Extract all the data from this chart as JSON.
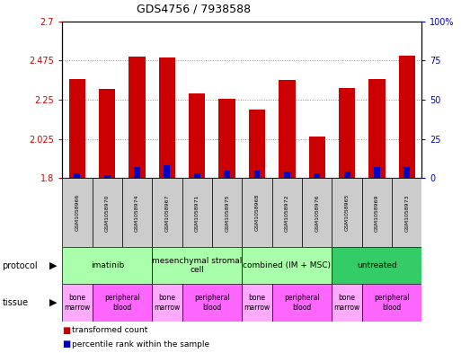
{
  "title": "GDS4756 / 7938588",
  "samples": [
    "GSM1058966",
    "GSM1058970",
    "GSM1058974",
    "GSM1058967",
    "GSM1058971",
    "GSM1058975",
    "GSM1058968",
    "GSM1058972",
    "GSM1058976",
    "GSM1058965",
    "GSM1058969",
    "GSM1058973"
  ],
  "transformed_counts": [
    2.37,
    2.31,
    2.495,
    2.49,
    2.285,
    2.255,
    2.195,
    2.365,
    2.04,
    2.315,
    2.37,
    2.5
  ],
  "percentile_ranks": [
    3,
    2,
    7,
    8,
    3,
    5,
    5,
    4,
    3,
    4,
    7,
    7
  ],
  "base_value": 1.8,
  "ylim": [
    1.8,
    2.7
  ],
  "y_ticks": [
    1.8,
    2.025,
    2.25,
    2.475,
    2.7
  ],
  "y_tick_labels": [
    "1.8",
    "2.025",
    "2.25",
    "2.475",
    "2.7"
  ],
  "right_yticks": [
    0,
    25,
    50,
    75,
    100
  ],
  "right_ytick_labels": [
    "0",
    "25",
    "50",
    "75",
    "100%"
  ],
  "bar_color_red": "#cc0000",
  "bar_color_blue": "#0000cc",
  "protocols": [
    {
      "label": "imatinib",
      "start": 0,
      "end": 3,
      "color": "#aaffaa"
    },
    {
      "label": "mesenchymal stromal\ncell",
      "start": 3,
      "end": 6,
      "color": "#aaffaa"
    },
    {
      "label": "combined (IM + MSC)",
      "start": 6,
      "end": 9,
      "color": "#aaffaa"
    },
    {
      "label": "untreated",
      "start": 9,
      "end": 12,
      "color": "#33cc66"
    }
  ],
  "tissues": [
    {
      "label": "bone\nmarrow",
      "start": 0,
      "end": 1,
      "color": "#ffaaff"
    },
    {
      "label": "peripheral\nblood",
      "start": 1,
      "end": 3,
      "color": "#ff66ff"
    },
    {
      "label": "bone\nmarrow",
      "start": 3,
      "end": 4,
      "color": "#ffaaff"
    },
    {
      "label": "peripheral\nblood",
      "start": 4,
      "end": 6,
      "color": "#ff66ff"
    },
    {
      "label": "bone\nmarrow",
      "start": 6,
      "end": 7,
      "color": "#ffaaff"
    },
    {
      "label": "peripheral\nblood",
      "start": 7,
      "end": 9,
      "color": "#ff66ff"
    },
    {
      "label": "bone\nmarrow",
      "start": 9,
      "end": 10,
      "color": "#ffaaff"
    },
    {
      "label": "peripheral\nblood",
      "start": 10,
      "end": 12,
      "color": "#ff66ff"
    }
  ],
  "grid_color": "#888888",
  "left_tick_color": "#cc0000",
  "right_tick_color": "#0000cc",
  "sample_box_color": "#cccccc",
  "fig_width": 5.13,
  "fig_height": 3.93,
  "dpi": 100
}
